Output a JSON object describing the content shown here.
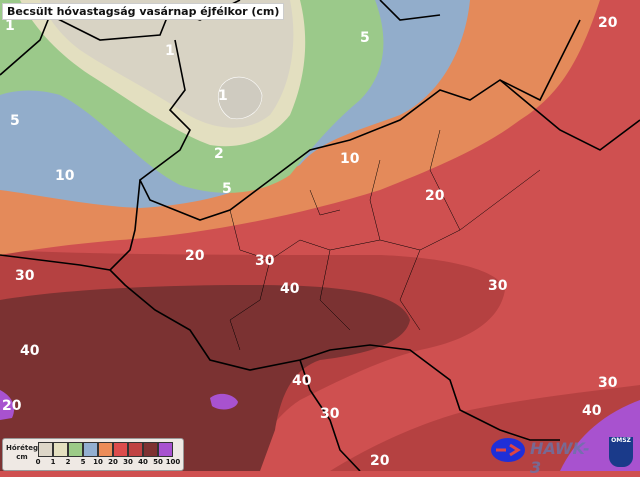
{
  "title": "Becsült hóvastagság vasárnap éjfélkor (cm)",
  "legend": {
    "label_line1": "Hóréteg",
    "label_line2": "cm",
    "ticks": [
      "0",
      "1",
      "2",
      "5",
      "10",
      "20",
      "30",
      "40",
      "50",
      "100"
    ],
    "colors": [
      "#ddd6c8",
      "#e4e0c0",
      "#9ccb88",
      "#93afd0",
      "#ec8c58",
      "#dc4c4c",
      "#c04242",
      "#7e3232",
      "#a852cf"
    ]
  },
  "contour_labels": [
    "1",
    "1",
    "1",
    "2",
    "5",
    "5",
    "5",
    "10",
    "10",
    "20",
    "20",
    "20",
    "30",
    "30",
    "40",
    "40",
    "30",
    "40",
    "30",
    "40",
    "30",
    "20",
    "20"
  ],
  "logos": {
    "model": "HAWK-3",
    "agency": "OMSZ"
  }
}
